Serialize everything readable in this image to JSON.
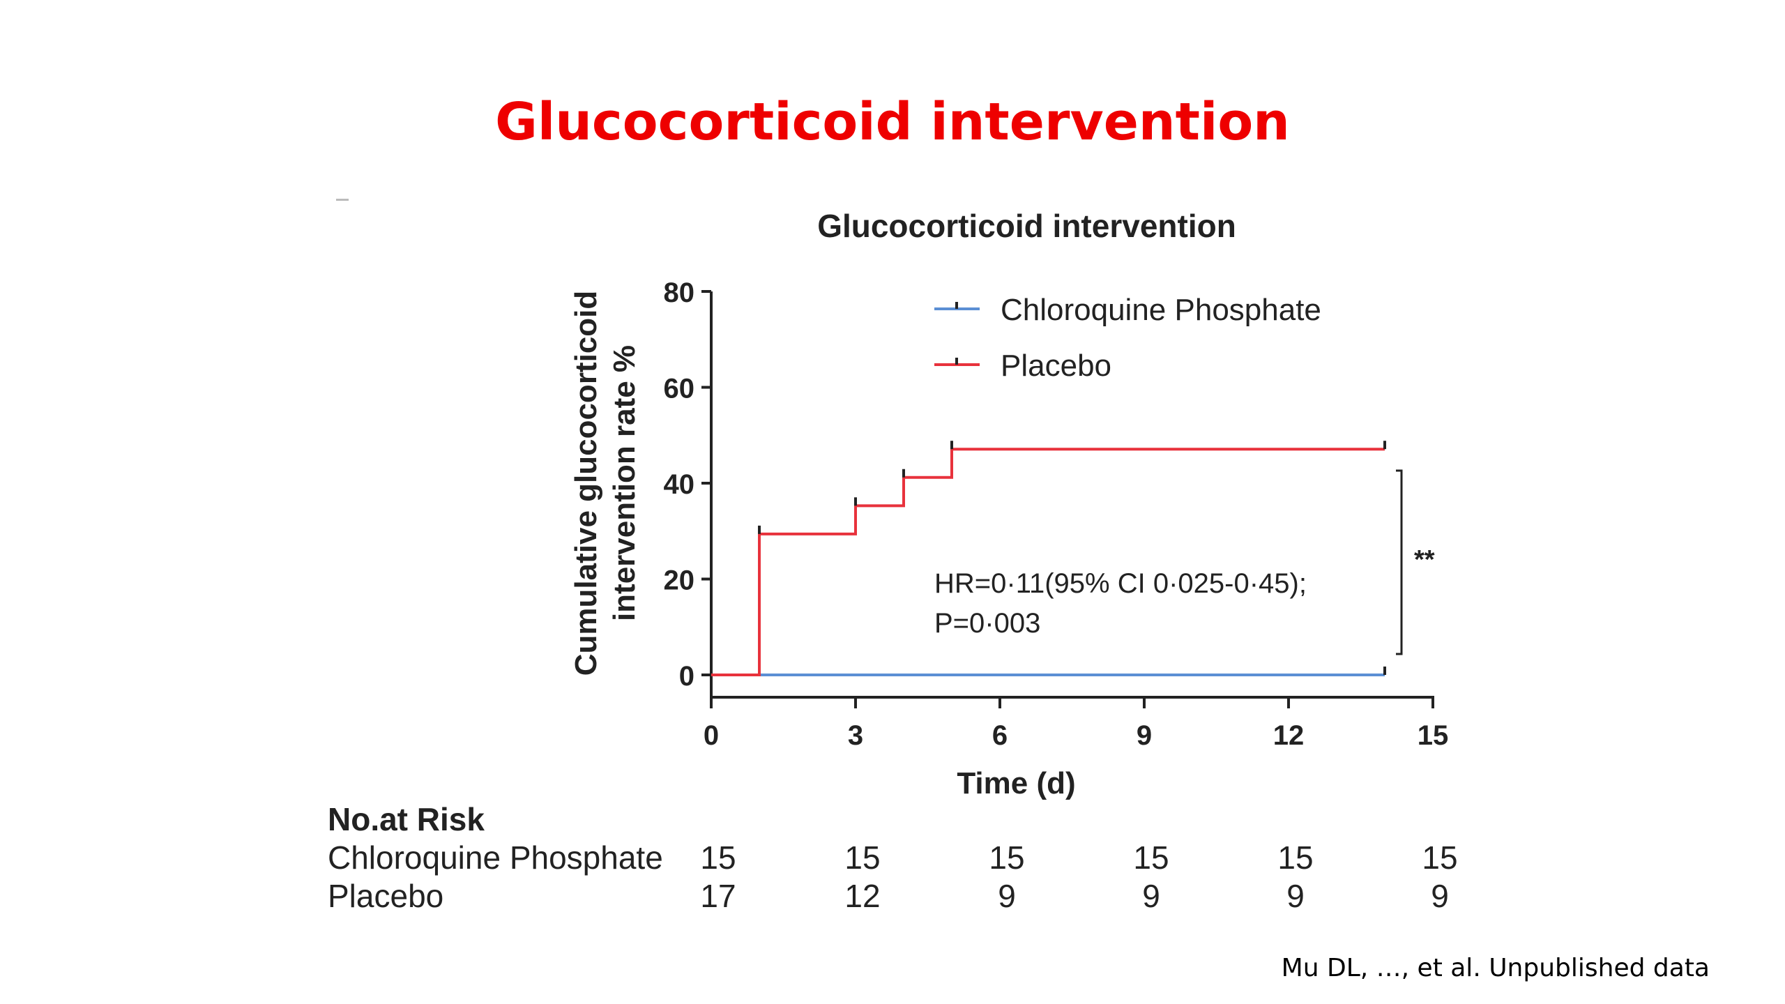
{
  "slide": {
    "title": "Glucocorticoid intervention",
    "citation": "Mu DL, …, et al. Unpublished data"
  },
  "chart_data": {
    "type": "line",
    "step": true,
    "title": "Glucocorticoid intervention",
    "xlabel": "Time (d)",
    "ylabel": "Cumulative glucocorticoid intervention rate %",
    "xlim": [
      0,
      15
    ],
    "ylim": [
      0,
      80
    ],
    "xticks": [
      0,
      3,
      6,
      9,
      12,
      15
    ],
    "yticks": [
      0,
      20,
      40,
      60,
      80
    ],
    "grid": false,
    "legend": "top-right",
    "series": [
      {
        "name": "Chloroquine Phosphate",
        "color": "#5b8fd4",
        "x": [
          0,
          14
        ],
        "y": [
          0,
          0
        ],
        "censor_x": [
          14
        ]
      },
      {
        "name": "Placebo",
        "color": "#e8323c",
        "x": [
          0,
          1,
          3,
          4,
          5,
          14
        ],
        "y": [
          0,
          29.4,
          35.3,
          41.2,
          47.1,
          47.1
        ],
        "censor_x": [
          1,
          3,
          4,
          5,
          14
        ]
      }
    ],
    "annotations": {
      "hr_line1": "HR=0·11(95% CI 0·025-0·45);",
      "hr_line2": "P=0·003",
      "significance": "**"
    },
    "risk_table": {
      "title": "No.at Risk",
      "times": [
        0,
        3,
        6,
        9,
        12,
        15
      ],
      "rows": [
        {
          "label": "Chloroquine Phosphate",
          "values": [
            "15",
            "15",
            "15",
            "15",
            "15",
            "15"
          ]
        },
        {
          "label": "Placebo",
          "values": [
            "17",
            "12",
            "9",
            "9",
            "9",
            "9"
          ]
        }
      ]
    }
  }
}
